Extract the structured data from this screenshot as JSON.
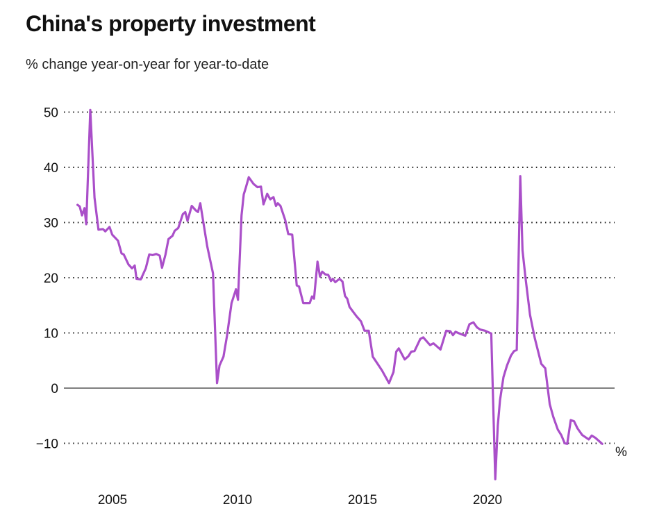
{
  "chart_data": {
    "type": "line",
    "title": "China's property investment",
    "subtitle": "% change year-on-year for year-to-date",
    "unit_label": "%",
    "xlabel": "",
    "ylabel": "",
    "xlim": [
      2003.4,
      2025.1
    ],
    "ylim": [
      -17,
      51
    ],
    "yticks": [
      50,
      40,
      30,
      20,
      10,
      0,
      -10
    ],
    "ytick_labels": [
      "50",
      "40",
      "30",
      "20",
      "10",
      "0",
      "−10"
    ],
    "xticks": [
      2005,
      2010,
      2015,
      2020
    ],
    "xtick_labels": [
      "2005",
      "2010",
      "2015",
      "2020"
    ],
    "grid": true,
    "series": [
      {
        "name": "Property investment",
        "color": "#aa4fc9",
        "x": [
          2003.6,
          2003.69,
          2003.78,
          2003.88,
          2003.95,
          2004.11,
          2004.28,
          2004.44,
          2004.62,
          2004.71,
          2004.88,
          2004.99,
          2005.22,
          2005.36,
          2005.45,
          2005.64,
          2005.78,
          2005.89,
          2005.96,
          2006.13,
          2006.33,
          2006.47,
          2006.61,
          2006.75,
          2006.89,
          2006.98,
          2007.12,
          2007.24,
          2007.4,
          2007.49,
          2007.63,
          2007.81,
          2007.91,
          2008.0,
          2008.17,
          2008.33,
          2008.42,
          2008.51,
          2008.79,
          2009.02,
          2009.18,
          2009.28,
          2009.44,
          2009.58,
          2009.76,
          2009.94,
          2010.02,
          2010.16,
          2010.25,
          2010.34,
          2010.45,
          2010.64,
          2010.8,
          2010.94,
          2011.04,
          2011.19,
          2011.31,
          2011.44,
          2011.54,
          2011.61,
          2011.72,
          2011.91,
          2012.03,
          2012.19,
          2012.37,
          2012.46,
          2012.63,
          2012.89,
          2012.98,
          2013.06,
          2013.2,
          2013.3,
          2013.39,
          2013.51,
          2013.63,
          2013.74,
          2013.81,
          2013.91,
          2014.08,
          2014.2,
          2014.3,
          2014.39,
          2014.48,
          2014.76,
          2014.94,
          2015.08,
          2015.25,
          2015.41,
          2015.59,
          2015.78,
          2016.06,
          2016.24,
          2016.35,
          2016.45,
          2016.69,
          2016.84,
          2016.95,
          2017.08,
          2017.31,
          2017.43,
          2017.7,
          2017.84,
          2018.12,
          2018.35,
          2018.51,
          2018.62,
          2018.72,
          2018.93,
          2019.11,
          2019.28,
          2019.44,
          2019.58,
          2019.71,
          2019.9,
          2020.15,
          2020.31,
          2020.41,
          2020.5,
          2020.64,
          2020.78,
          2020.94,
          2021.06,
          2021.17,
          2021.31,
          2021.4,
          2021.52,
          2021.7,
          2021.89,
          2022.15,
          2022.31,
          2022.49,
          2022.63,
          2022.81,
          2022.95,
          2023.09,
          2023.19,
          2023.33,
          2023.46,
          2023.6,
          2023.79,
          2024.05,
          2024.17,
          2024.31,
          2024.59
        ],
        "y": [
          33.2,
          32.9,
          31.3,
          32.6,
          29.7,
          50.4,
          34.5,
          28.7,
          28.8,
          28.4,
          29.2,
          27.8,
          26.7,
          24.4,
          24.2,
          22.4,
          21.7,
          22.2,
          19.8,
          19.7,
          21.7,
          24.2,
          24.1,
          24.3,
          24.0,
          21.8,
          24.2,
          27.0,
          27.6,
          28.5,
          29.0,
          31.5,
          31.9,
          30.3,
          33.0,
          32.2,
          31.9,
          33.5,
          25.7,
          20.8,
          0.9,
          4.1,
          5.7,
          9.5,
          15.4,
          17.9,
          16.0,
          31.3,
          35.1,
          36.4,
          38.2,
          37.0,
          36.4,
          36.5,
          33.3,
          35.2,
          34.2,
          34.6,
          33.0,
          33.5,
          33.0,
          30.4,
          27.9,
          27.8,
          18.6,
          18.4,
          15.4,
          15.4,
          16.6,
          16.2,
          22.9,
          20.2,
          21.1,
          20.6,
          20.5,
          19.4,
          19.8,
          19.2,
          19.8,
          19.3,
          16.7,
          16.2,
          14.7,
          13.0,
          12.1,
          10.4,
          10.4,
          5.7,
          4.5,
          3.2,
          0.9,
          2.9,
          6.6,
          7.2,
          5.2,
          5.8,
          6.6,
          6.7,
          8.9,
          9.2,
          7.8,
          8.1,
          7.0,
          10.4,
          10.3,
          9.6,
          10.2,
          9.8,
          9.5,
          11.6,
          11.9,
          11.0,
          10.6,
          10.4,
          9.9,
          -16.5,
          -6.8,
          -2.2,
          2.0,
          4.1,
          5.9,
          6.7,
          6.9,
          38.4,
          25.0,
          20.0,
          13.3,
          9.1,
          4.4,
          3.6,
          -2.9,
          -5.2,
          -7.5,
          -8.5,
          -10.0,
          -10.1,
          -5.8,
          -6.0,
          -7.3,
          -8.5,
          -9.3,
          -8.6,
          -9.0,
          -10.1
        ]
      }
    ]
  }
}
